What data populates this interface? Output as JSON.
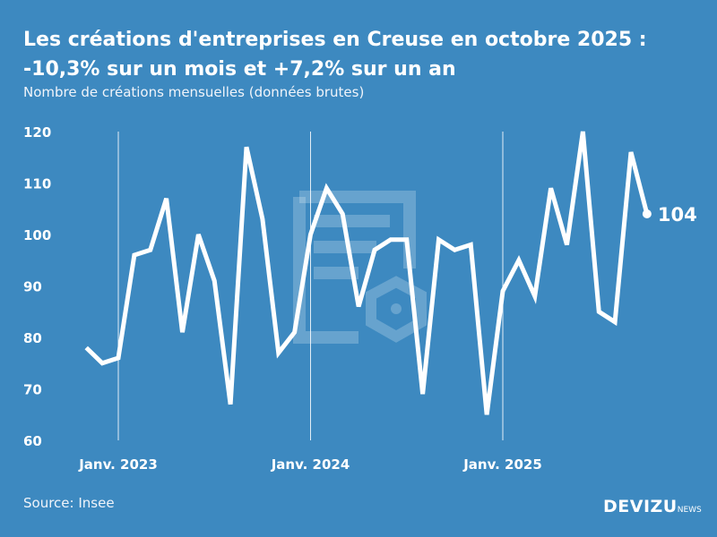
{
  "title_line1": "Les créations d'entreprises en Creuse en octobre 2025 :",
  "title_line2": "-10,3% sur un mois et +7,2% sur un an",
  "subtitle": "Nombre de créations mensuelles (données brutes)",
  "source": "Source: Insee",
  "brand": "DEVIZU",
  "brand_suffix": "NEWS",
  "colors": {
    "background": "#3d89c0",
    "line": "#ffffff"
  },
  "chart_data": {
    "type": "line",
    "title": "Les créations d'entreprises en Creuse en octobre 2025 : -10,3% sur un mois et +7,2% sur un an",
    "ylabel": "",
    "xlabel": "",
    "ylim": [
      60,
      120
    ],
    "yticks": [
      60,
      70,
      80,
      90,
      100,
      110,
      120
    ],
    "xtick_labels": [
      {
        "label": "Janv. 2023",
        "x": "2023-01"
      },
      {
        "label": "Janv. 2024",
        "x": "2024-01"
      },
      {
        "label": "Janv. 2025",
        "x": "2025-01"
      }
    ],
    "grid": "vertical lines at January",
    "x": [
      "2022-11",
      "2022-12",
      "2023-01",
      "2023-02",
      "2023-03",
      "2023-04",
      "2023-05",
      "2023-06",
      "2023-07",
      "2023-08",
      "2023-09",
      "2023-10",
      "2023-11",
      "2023-12",
      "2024-01",
      "2024-02",
      "2024-03",
      "2024-04",
      "2024-05",
      "2024-06",
      "2024-07",
      "2024-08",
      "2024-09",
      "2024-10",
      "2024-11",
      "2024-12",
      "2025-01",
      "2025-02",
      "2025-03",
      "2025-04",
      "2025-05",
      "2025-06",
      "2025-07",
      "2025-08",
      "2025-09",
      "2025-10"
    ],
    "values": [
      78,
      75,
      76,
      96,
      97,
      107,
      81,
      100,
      91,
      67,
      117,
      103,
      77,
      81,
      100,
      109,
      104,
      86,
      97,
      99,
      99,
      69,
      99,
      97,
      98,
      65,
      89,
      95,
      88,
      109,
      98,
      120,
      85,
      83,
      116,
      104
    ],
    "last_label": "104"
  }
}
